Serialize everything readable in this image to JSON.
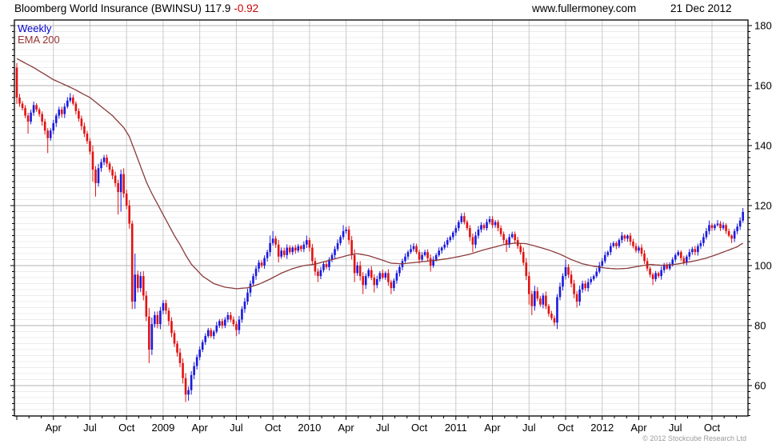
{
  "header": {
    "title_main": "Bloomberg World Insurance (BWINSU) 117.9",
    "title_change": "-0.92",
    "website": "www.fullermoney.com",
    "date": "21 Dec 2012"
  },
  "legend": {
    "timeframe": "Weekly",
    "overlay": "EMA 200"
  },
  "footer": {
    "copyright": "© 2012 Stockcube Research Ltd"
  },
  "colors": {
    "up_candle": "#1a1ae0",
    "down_candle": "#e31212",
    "ema_line": "#8b3a3a",
    "grid_minor": "#ececec",
    "grid_major": "#b3b3b3",
    "grid_vertical": "#c9c9c9",
    "border": "#000000",
    "axis_text": "#000000",
    "change_text": "#cc0000",
    "weekly_label": "#0000cc",
    "ema_label": "#993333",
    "copyright_text": "#9a9a9a"
  },
  "chart_data": {
    "type": "candlestick+line",
    "title": "Bloomberg World Insurance (BWINSU)",
    "timeframe": "Weekly",
    "last_close": 117.9,
    "change": -0.92,
    "y_axis": {
      "min": 50,
      "max": 182,
      "major_ticks": [
        60,
        80,
        100,
        120,
        140,
        160,
        180
      ],
      "minor_step": 2
    },
    "x_axis": {
      "weeks_per_quarter": 13,
      "labels": [
        {
          "week": 13,
          "label": "Apr"
        },
        {
          "week": 26,
          "label": "Jul"
        },
        {
          "week": 39,
          "label": "Oct"
        },
        {
          "week": 52,
          "label": "2009"
        },
        {
          "week": 65,
          "label": "Apr"
        },
        {
          "week": 78,
          "label": "Jul"
        },
        {
          "week": 91,
          "label": "Oct"
        },
        {
          "week": 104,
          "label": "2010"
        },
        {
          "week": 117,
          "label": "Apr"
        },
        {
          "week": 130,
          "label": "Jul"
        },
        {
          "week": 143,
          "label": "Oct"
        },
        {
          "week": 156,
          "label": "2011"
        },
        {
          "week": 169,
          "label": "Apr"
        },
        {
          "week": 182,
          "label": "Jul"
        },
        {
          "week": 195,
          "label": "Oct"
        },
        {
          "week": 208,
          "label": "2012"
        },
        {
          "week": 221,
          "label": "Apr"
        },
        {
          "week": 234,
          "label": "Jul"
        },
        {
          "week": 247,
          "label": "Oct"
        }
      ]
    },
    "first_open": 166,
    "weekly_closes": [
      156,
      154,
      152.5,
      150,
      148,
      151,
      153.5,
      152,
      150.5,
      148,
      145,
      142.5,
      145,
      147.5,
      150,
      152,
      150.5,
      153,
      155,
      156,
      154,
      151.5,
      149,
      146.5,
      144,
      141.5,
      138,
      132,
      127.5,
      132.5,
      134.5,
      136,
      134,
      132,
      130,
      127.5,
      124.5,
      130.5,
      124,
      120,
      114,
      88,
      97,
      92.5,
      96.5,
      90,
      83,
      72,
      80.5,
      83.5,
      80.5,
      85,
      87.5,
      85,
      81.5,
      77.5,
      74,
      71,
      67.5,
      62.5,
      57,
      58.5,
      63.5,
      66.5,
      69.5,
      72,
      74.5,
      76.5,
      78.5,
      76.5,
      78,
      80,
      81.5,
      80,
      82,
      83.5,
      82,
      80.5,
      78.5,
      82,
      85.5,
      88,
      91,
      94,
      96.5,
      99,
      101,
      100,
      102.5,
      104.5,
      107.5,
      109,
      107,
      103,
      105,
      103.5,
      106,
      104.5,
      106,
      105,
      106.5,
      105.5,
      107,
      108.5,
      106,
      101.5,
      98,
      96.5,
      98.5,
      100.5,
      99.5,
      102,
      103.5,
      105.5,
      107.5,
      109.5,
      111.5,
      112,
      108.5,
      103.5,
      97.5,
      100,
      96.5,
      93.5,
      96.5,
      98.5,
      96,
      93.5,
      95.5,
      97.5,
      96,
      97.5,
      94.5,
      92.5,
      95,
      97.5,
      99.5,
      101.5,
      103,
      104.5,
      105.5,
      106.5,
      104.5,
      102,
      103.5,
      104.5,
      102.5,
      100,
      102,
      103.5,
      105,
      106,
      107,
      108.5,
      109.5,
      111,
      112.5,
      114.5,
      116.5,
      114.5,
      112.5,
      109.5,
      107,
      110,
      112,
      113.5,
      112.5,
      114.5,
      115.5,
      113.5,
      114.5,
      112.5,
      110.5,
      108.5,
      107,
      109.5,
      110.5,
      108.5,
      106.5,
      104.5,
      101,
      96.5,
      90.5,
      86.5,
      91.5,
      89,
      87,
      90,
      86.5,
      84,
      82.5,
      81,
      89.5,
      93,
      96.5,
      99.5,
      97,
      94,
      90.5,
      88,
      92,
      94,
      92.5,
      94.5,
      95.5,
      96.5,
      98,
      100,
      101.5,
      103.5,
      104.5,
      106.5,
      107.5,
      106.5,
      108.5,
      110,
      109,
      110,
      108,
      106.5,
      105,
      106,
      104,
      101.5,
      99,
      97,
      95.5,
      97.5,
      96.5,
      98.5,
      100,
      99,
      100.5,
      102,
      103.5,
      104.5,
      102.5,
      101,
      103,
      104.5,
      105.5,
      104.5,
      106.5,
      107.5,
      109.5,
      111.5,
      113.5,
      112.5,
      113.5,
      114,
      112.5,
      113.5,
      111.5,
      110,
      109,
      111.5,
      113,
      115,
      117.9
    ],
    "wick_overrides": {
      "0": {
        "hi": 167.5
      },
      "4": {
        "lo": 144
      },
      "11": {
        "lo": 137.5
      },
      "19": {
        "hi": 157.5
      },
      "27": {
        "lo": 128
      },
      "28": {
        "lo": 123
      },
      "36": {
        "lo": 117
      },
      "37": {
        "hi": 132,
        "lo": 118
      },
      "41": {
        "hi": 115,
        "lo": 85.5
      },
      "42": {
        "hi": 104
      },
      "47": {
        "lo": 67.5
      },
      "52": {
        "hi": 88.5
      },
      "60": {
        "lo": 54.5
      },
      "61": {
        "lo": 55
      },
      "78": {
        "lo": 76.5
      },
      "90": {
        "hi": 110
      },
      "91": {
        "hi": 111.5
      },
      "93": {
        "lo": 101
      },
      "103": {
        "hi": 110
      },
      "107": {
        "lo": 94.5
      },
      "116": {
        "hi": 113.5
      },
      "120": {
        "lo": 94.5
      },
      "123": {
        "lo": 90.5
      },
      "127": {
        "lo": 91
      },
      "133": {
        "lo": 90.5
      },
      "140": {
        "hi": 107
      },
      "147": {
        "lo": 98
      },
      "158": {
        "hi": 117.5
      },
      "162": {
        "lo": 104.5
      },
      "168": {
        "hi": 116.5
      },
      "174": {
        "lo": 104.5
      },
      "182": {
        "lo": 87
      },
      "183": {
        "lo": 83.5
      },
      "191": {
        "lo": 79.9
      },
      "192": {
        "hi": 90.5
      },
      "195": {
        "hi": 102
      },
      "199": {
        "lo": 86
      },
      "215": {
        "hi": 111.2
      },
      "226": {
        "lo": 93.5
      },
      "246": {
        "hi": 115
      },
      "249": {
        "hi": 115.2
      },
      "254": {
        "lo": 107.5
      },
      "258": {
        "hi": 119.2,
        "lo": 114.3
      }
    },
    "ema_200": {
      "name": "EMA 200",
      "keypoints": [
        [
          0,
          169
        ],
        [
          6,
          166
        ],
        [
          13,
          162
        ],
        [
          20,
          159
        ],
        [
          26,
          156
        ],
        [
          30,
          153
        ],
        [
          34,
          150
        ],
        [
          38,
          146
        ],
        [
          40,
          143
        ],
        [
          42,
          138
        ],
        [
          44,
          133
        ],
        [
          46,
          128
        ],
        [
          48,
          124
        ],
        [
          52,
          117
        ],
        [
          56,
          110
        ],
        [
          58,
          107
        ],
        [
          60,
          103.5
        ],
        [
          62,
          100.5
        ],
        [
          64,
          98.5
        ],
        [
          66,
          96.5
        ],
        [
          70,
          94
        ],
        [
          74,
          92.8
        ],
        [
          78,
          92.3
        ],
        [
          82,
          92.6
        ],
        [
          86,
          93.8
        ],
        [
          90,
          95.5
        ],
        [
          94,
          97.5
        ],
        [
          98,
          99
        ],
        [
          102,
          100
        ],
        [
          106,
          100.5
        ],
        [
          110,
          101.5
        ],
        [
          114,
          102.5
        ],
        [
          118,
          103.5
        ],
        [
          121,
          104
        ],
        [
          125,
          103.3
        ],
        [
          130,
          101.8
        ],
        [
          133,
          100.8
        ],
        [
          137,
          100.6
        ],
        [
          141,
          101
        ],
        [
          145,
          101.4
        ],
        [
          149,
          101.8
        ],
        [
          153,
          102.3
        ],
        [
          157,
          103
        ],
        [
          161,
          103.8
        ],
        [
          165,
          105
        ],
        [
          169,
          106
        ],
        [
          173,
          107
        ],
        [
          177,
          107.5
        ],
        [
          181,
          107.3
        ],
        [
          185,
          106.3
        ],
        [
          189,
          105.2
        ],
        [
          193,
          103.8
        ],
        [
          197,
          102
        ],
        [
          201,
          100.6
        ],
        [
          205,
          99.8
        ],
        [
          209,
          99.2
        ],
        [
          213,
          98.9
        ],
        [
          217,
          99.1
        ],
        [
          221,
          99.8
        ],
        [
          225,
          100.4
        ],
        [
          229,
          100.1
        ],
        [
          233,
          100.3
        ],
        [
          237,
          100.9
        ],
        [
          241,
          101.6
        ],
        [
          245,
          102.5
        ],
        [
          249,
          103.8
        ],
        [
          253,
          105.2
        ],
        [
          256,
          106.3
        ],
        [
          258,
          107.5
        ]
      ]
    }
  }
}
